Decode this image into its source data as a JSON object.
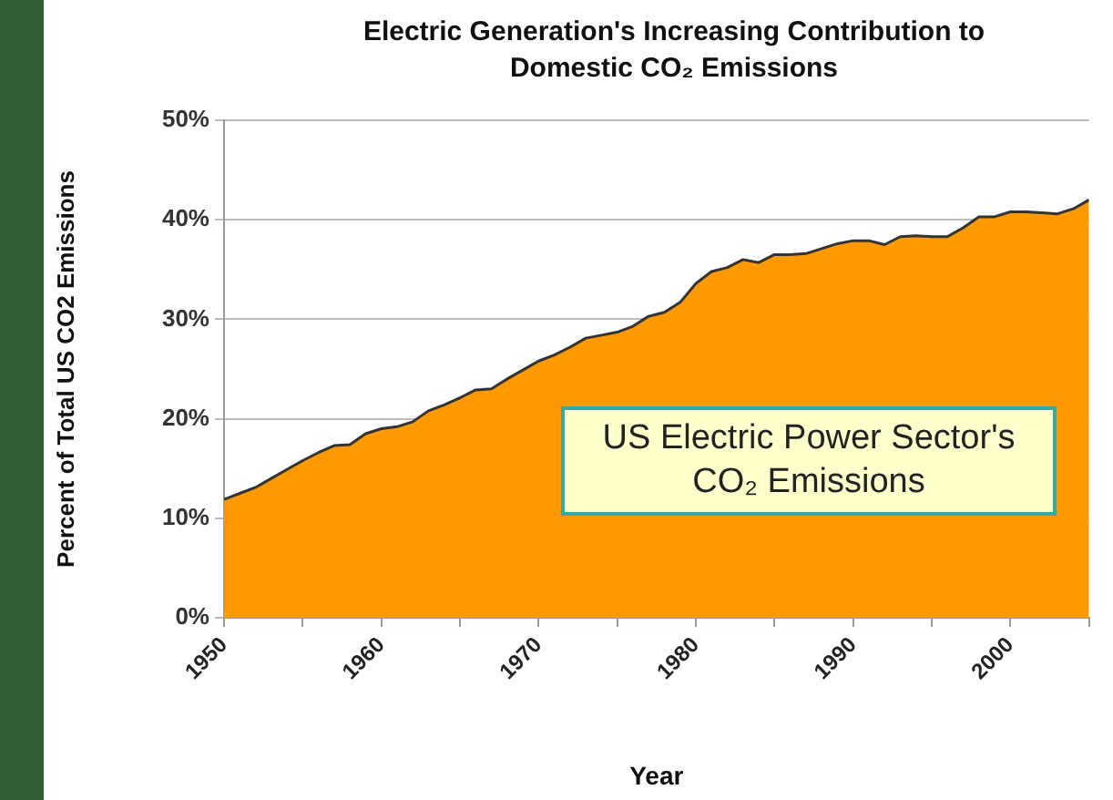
{
  "chart_data": {
    "type": "area",
    "title": "Electric Generation's Increasing Contribution to Domestic CO₂ Emissions",
    "xlabel": "Year",
    "ylabel": "Percent of Total US CO2 Emissions",
    "annotations": [
      "US Electric Power Sector's CO₂ Emissions"
    ],
    "x": [
      1950,
      1951,
      1952,
      1953,
      1954,
      1955,
      1956,
      1957,
      1958,
      1959,
      1960,
      1961,
      1962,
      1963,
      1964,
      1965,
      1966,
      1967,
      1968,
      1969,
      1970,
      1971,
      1972,
      1973,
      1974,
      1975,
      1976,
      1977,
      1978,
      1979,
      1980,
      1981,
      1982,
      1983,
      1984,
      1985,
      1986,
      1987,
      1988,
      1989,
      1990,
      1991,
      1992,
      1993,
      1994,
      1995,
      1996,
      1997,
      1998,
      1999,
      2000,
      2001,
      2002,
      2003,
      2004,
      2005
    ],
    "series": [
      {
        "color": "#ff9900",
        "values": [
          11.9,
          12.5,
          13.1,
          14.0,
          14.9,
          15.8,
          16.6,
          17.3,
          17.4,
          18.5,
          19.0,
          19.2,
          19.7,
          20.8,
          21.4,
          22.1,
          22.9,
          23.0,
          24.0,
          24.9,
          25.8,
          26.4,
          27.2,
          28.1,
          28.4,
          28.7,
          29.3,
          30.3,
          30.7,
          31.7,
          33.6,
          34.8,
          35.2,
          36.0,
          35.7,
          36.5,
          36.5,
          36.6,
          37.1,
          37.6,
          37.9,
          37.9,
          37.5,
          38.3,
          38.4,
          38.3,
          38.3,
          39.2,
          40.3,
          40.3,
          40.8,
          40.8,
          40.7,
          40.6,
          41.1,
          42.0
        ]
      }
    ],
    "xlim": [
      1950,
      2005
    ],
    "xticks": [
      1950,
      {
        "value": 1955,
        "label": null
      },
      1960,
      {
        "value": 1965,
        "label": null
      },
      1970,
      {
        "value": 1975,
        "label": null
      },
      1980,
      {
        "value": 1985,
        "label": null
      },
      1990,
      {
        "value": 1995,
        "label": null
      },
      2000,
      {
        "value": 2005,
        "label": null
      }
    ],
    "ylim": [
      0,
      50
    ],
    "yticks": [
      {
        "value": 0,
        "label": "0%"
      },
      {
        "value": 10,
        "label": "10%"
      },
      {
        "value": 20,
        "label": "20%"
      },
      {
        "value": 30,
        "label": "30%"
      },
      {
        "value": 40,
        "label": "40%"
      },
      {
        "value": 50,
        "label": "50%"
      }
    ],
    "grid": "y",
    "legend": false
  }
}
